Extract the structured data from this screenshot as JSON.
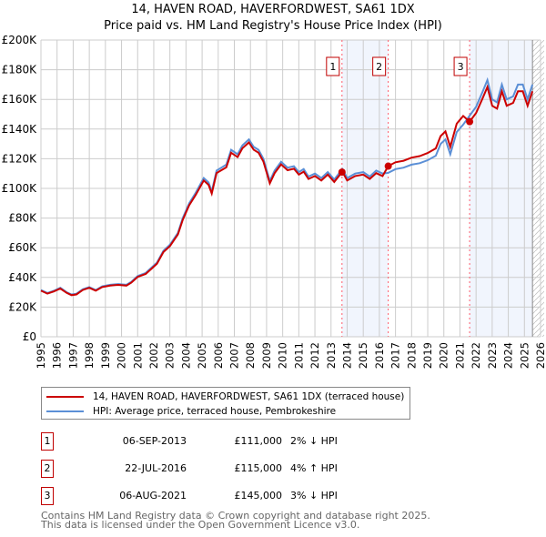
{
  "title": "14, HAVEN ROAD, HAVERFORDWEST, SA61 1DX",
  "subtitle": "Price paid vs. HM Land Registry's House Price Index (HPI)",
  "legend": [
    {
      "label": "14, HAVEN ROAD, HAVERFORDWEST, SA61 1DX (terraced house)",
      "color": "#cc0000"
    },
    {
      "label": "HPI: Average price, terraced house, Pembrokeshire",
      "color": "#5b8fd6"
    }
  ],
  "sales": [
    {
      "num": "1",
      "date": "06-SEP-2013",
      "price": "£111,000",
      "hpi": "2% ↓ HPI",
      "year": 2013.68,
      "value": 111
    },
    {
      "num": "2",
      "date": "22-JUL-2016",
      "price": "£115,000",
      "hpi": "4% ↑ HPI",
      "year": 2016.55,
      "value": 115
    },
    {
      "num": "3",
      "date": "06-AUG-2021",
      "price": "£145,000",
      "hpi": "3% ↓ HPI",
      "year": 2021.6,
      "value": 145
    }
  ],
  "footer": [
    "Contains HM Land Registry data © Crown copyright and database right 2025.",
    "This data is licensed under the Open Government Licence v3.0."
  ],
  "chart_data": {
    "type": "line",
    "xlim": [
      1995,
      2026
    ],
    "ylim": [
      0,
      200
    ],
    "x_ticks": [
      "1995",
      "1996",
      "1997",
      "1998",
      "1999",
      "2000",
      "2001",
      "2002",
      "2003",
      "2004",
      "2005",
      "2006",
      "2007",
      "2008",
      "2009",
      "2010",
      "2011",
      "2012",
      "2013",
      "2014",
      "2015",
      "2016",
      "2017",
      "2018",
      "2019",
      "2020",
      "2021",
      "2022",
      "2023",
      "2024",
      "2025",
      "2026"
    ],
    "y_ticks": [
      {
        "v": 0,
        "label": "£0"
      },
      {
        "v": 20,
        "label": "£20K"
      },
      {
        "v": 40,
        "label": "£40K"
      },
      {
        "v": 60,
        "label": "£60K"
      },
      {
        "v": 80,
        "label": "£80K"
      },
      {
        "v": 100,
        "label": "£100K"
      },
      {
        "v": 120,
        "label": "£120K"
      },
      {
        "v": 140,
        "label": "£140K"
      },
      {
        "v": 160,
        "label": "£160K"
      },
      {
        "v": 180,
        "label": "£180K"
      },
      {
        "v": 200,
        "label": "£200K"
      }
    ],
    "data_end": 2025.5,
    "hpi_series": [
      [
        1995,
        31.5
      ],
      [
        1995.4,
        29.5
      ],
      [
        1995.8,
        31
      ],
      [
        1996.2,
        33
      ],
      [
        1996.6,
        30
      ],
      [
        1996.9,
        28.5
      ],
      [
        1997.2,
        29
      ],
      [
        1997.6,
        32
      ],
      [
        1998,
        33.5
      ],
      [
        1998.4,
        31.5
      ],
      [
        1998.8,
        34
      ],
      [
        1999.3,
        35
      ],
      [
        1999.8,
        35.5
      ],
      [
        2000.3,
        35
      ],
      [
        2000.6,
        37
      ],
      [
        2001,
        41
      ],
      [
        2001.5,
        43
      ],
      [
        2001.9,
        47
      ],
      [
        2002.2,
        50
      ],
      [
        2002.6,
        58
      ],
      [
        2003,
        62
      ],
      [
        2003.5,
        70
      ],
      [
        2003.8,
        80
      ],
      [
        2004.2,
        90
      ],
      [
        2004.6,
        97
      ],
      [
        2005.1,
        107
      ],
      [
        2005.4,
        104
      ],
      [
        2005.6,
        98
      ],
      [
        2005.9,
        112
      ],
      [
        2006.2,
        114
      ],
      [
        2006.5,
        116
      ],
      [
        2006.8,
        126
      ],
      [
        2007.2,
        123
      ],
      [
        2007.5,
        129
      ],
      [
        2007.9,
        133
      ],
      [
        2008.2,
        128
      ],
      [
        2008.5,
        126
      ],
      [
        2008.8,
        120
      ],
      [
        2009.2,
        105
      ],
      [
        2009.5,
        112
      ],
      [
        2009.9,
        118
      ],
      [
        2010.3,
        114
      ],
      [
        2010.7,
        115
      ],
      [
        2011,
        111
      ],
      [
        2011.3,
        113
      ],
      [
        2011.6,
        108
      ],
      [
        2012,
        110
      ],
      [
        2012.4,
        107
      ],
      [
        2012.8,
        111
      ],
      [
        2013.2,
        106
      ],
      [
        2013.7,
        113
      ],
      [
        2014,
        107
      ],
      [
        2014.5,
        110
      ],
      [
        2015,
        111
      ],
      [
        2015.4,
        108
      ],
      [
        2015.8,
        112
      ],
      [
        2016.2,
        110
      ],
      [
        2016.55,
        110.5
      ],
      [
        2017,
        113
      ],
      [
        2017.5,
        114
      ],
      [
        2018,
        116
      ],
      [
        2018.5,
        117
      ],
      [
        2019,
        119
      ],
      [
        2019.5,
        122
      ],
      [
        2019.8,
        130
      ],
      [
        2020.1,
        133
      ],
      [
        2020.4,
        123
      ],
      [
        2020.8,
        138
      ],
      [
        2021.2,
        143
      ],
      [
        2021.6,
        149
      ],
      [
        2022,
        155
      ],
      [
        2022.4,
        165
      ],
      [
        2022.7,
        173
      ],
      [
        2023,
        160
      ],
      [
        2023.3,
        158
      ],
      [
        2023.6,
        170
      ],
      [
        2023.9,
        160
      ],
      [
        2024.3,
        162
      ],
      [
        2024.6,
        170
      ],
      [
        2024.9,
        170
      ],
      [
        2025.2,
        160
      ],
      [
        2025.5,
        170
      ]
    ]
  }
}
